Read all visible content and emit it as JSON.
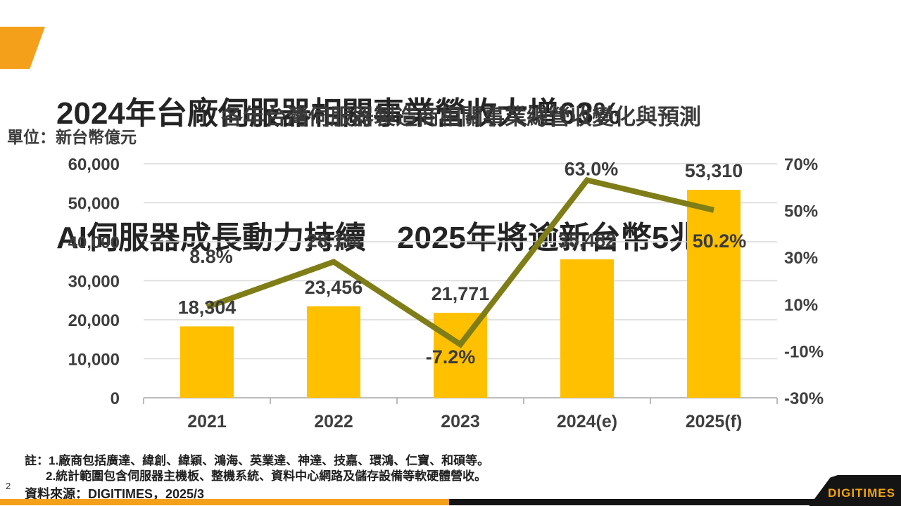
{
  "header": {
    "title_line1": "2024年台廠伺服器相關事業營收大增63%",
    "title_line2": "AI伺服器成長動力持續　2025年將逾新台幣5兆元"
  },
  "chart": {
    "title": "各年台灣伺服器製造商相關事業總營收變化與預測",
    "unit_label": "單位：新台幣億元"
  },
  "chart_data": {
    "type": "bar",
    "subtype": "bar-line-combo",
    "title": "各年台灣伺服器製造商相關事業總營收變化與預測",
    "unit": "新台幣億元",
    "categories": [
      "2021",
      "2022",
      "2023",
      "2024(e)",
      "2025(f)"
    ],
    "series": [
      {
        "name": "伺服器相關事業總營收",
        "type": "bar",
        "axis": "left",
        "color": "#FFC000",
        "values": [
          18304,
          23456,
          21771,
          35482,
          53310
        ],
        "labels": [
          "18,304",
          "23,456",
          "21,771",
          "35,482",
          "53,310"
        ]
      },
      {
        "name": "年成長率",
        "type": "line",
        "axis": "right",
        "color": "#7F7D17",
        "values": [
          8.8,
          28.1,
          -7.2,
          63.0,
          50.2
        ],
        "labels": [
          "8.8%",
          "28.1%",
          "-7.2%",
          "63.0%",
          "50.2%"
        ]
      }
    ],
    "left_axis": {
      "min": 0,
      "max": 60000,
      "step": 10000,
      "tick_labels": [
        "0",
        "10,000",
        "20,000",
        "30,000",
        "40,000",
        "50,000",
        "60,000"
      ]
    },
    "right_axis": {
      "min": -30,
      "max": 70,
      "step": 20,
      "tick_labels": [
        "-30%",
        "-10%",
        "10%",
        "30%",
        "50%",
        "70%"
      ]
    },
    "grid": true,
    "legend": "none",
    "label_layout": {
      "growth_dx": [
        6,
        0,
        -14,
        6,
        8
      ],
      "growth_dy": [
        -72,
        -30,
        18,
        -16,
        44
      ]
    }
  },
  "footnotes": {
    "note1": "註：1.廠商包括廣達、緯創、緯穎、鴻海、英業達、神達、技嘉、環鴻、仁寶、和碩等。",
    "note2": "2.統計範圍包含伺服器主機板、整機系統、資料中心網路及儲存設備等軟硬體營收。",
    "source": "資料來源：DIGITIMES，2025/3"
  },
  "page_number": "2",
  "footer": {
    "logo_text": "DIGITIMES"
  },
  "colors": {
    "bar": "#FFC000",
    "line": "#7F7D17",
    "accent_orange": "#F5A01B",
    "footer_black": "#141414",
    "gridline": "#D9D9D9",
    "axis_line": "#A6A6A6"
  }
}
